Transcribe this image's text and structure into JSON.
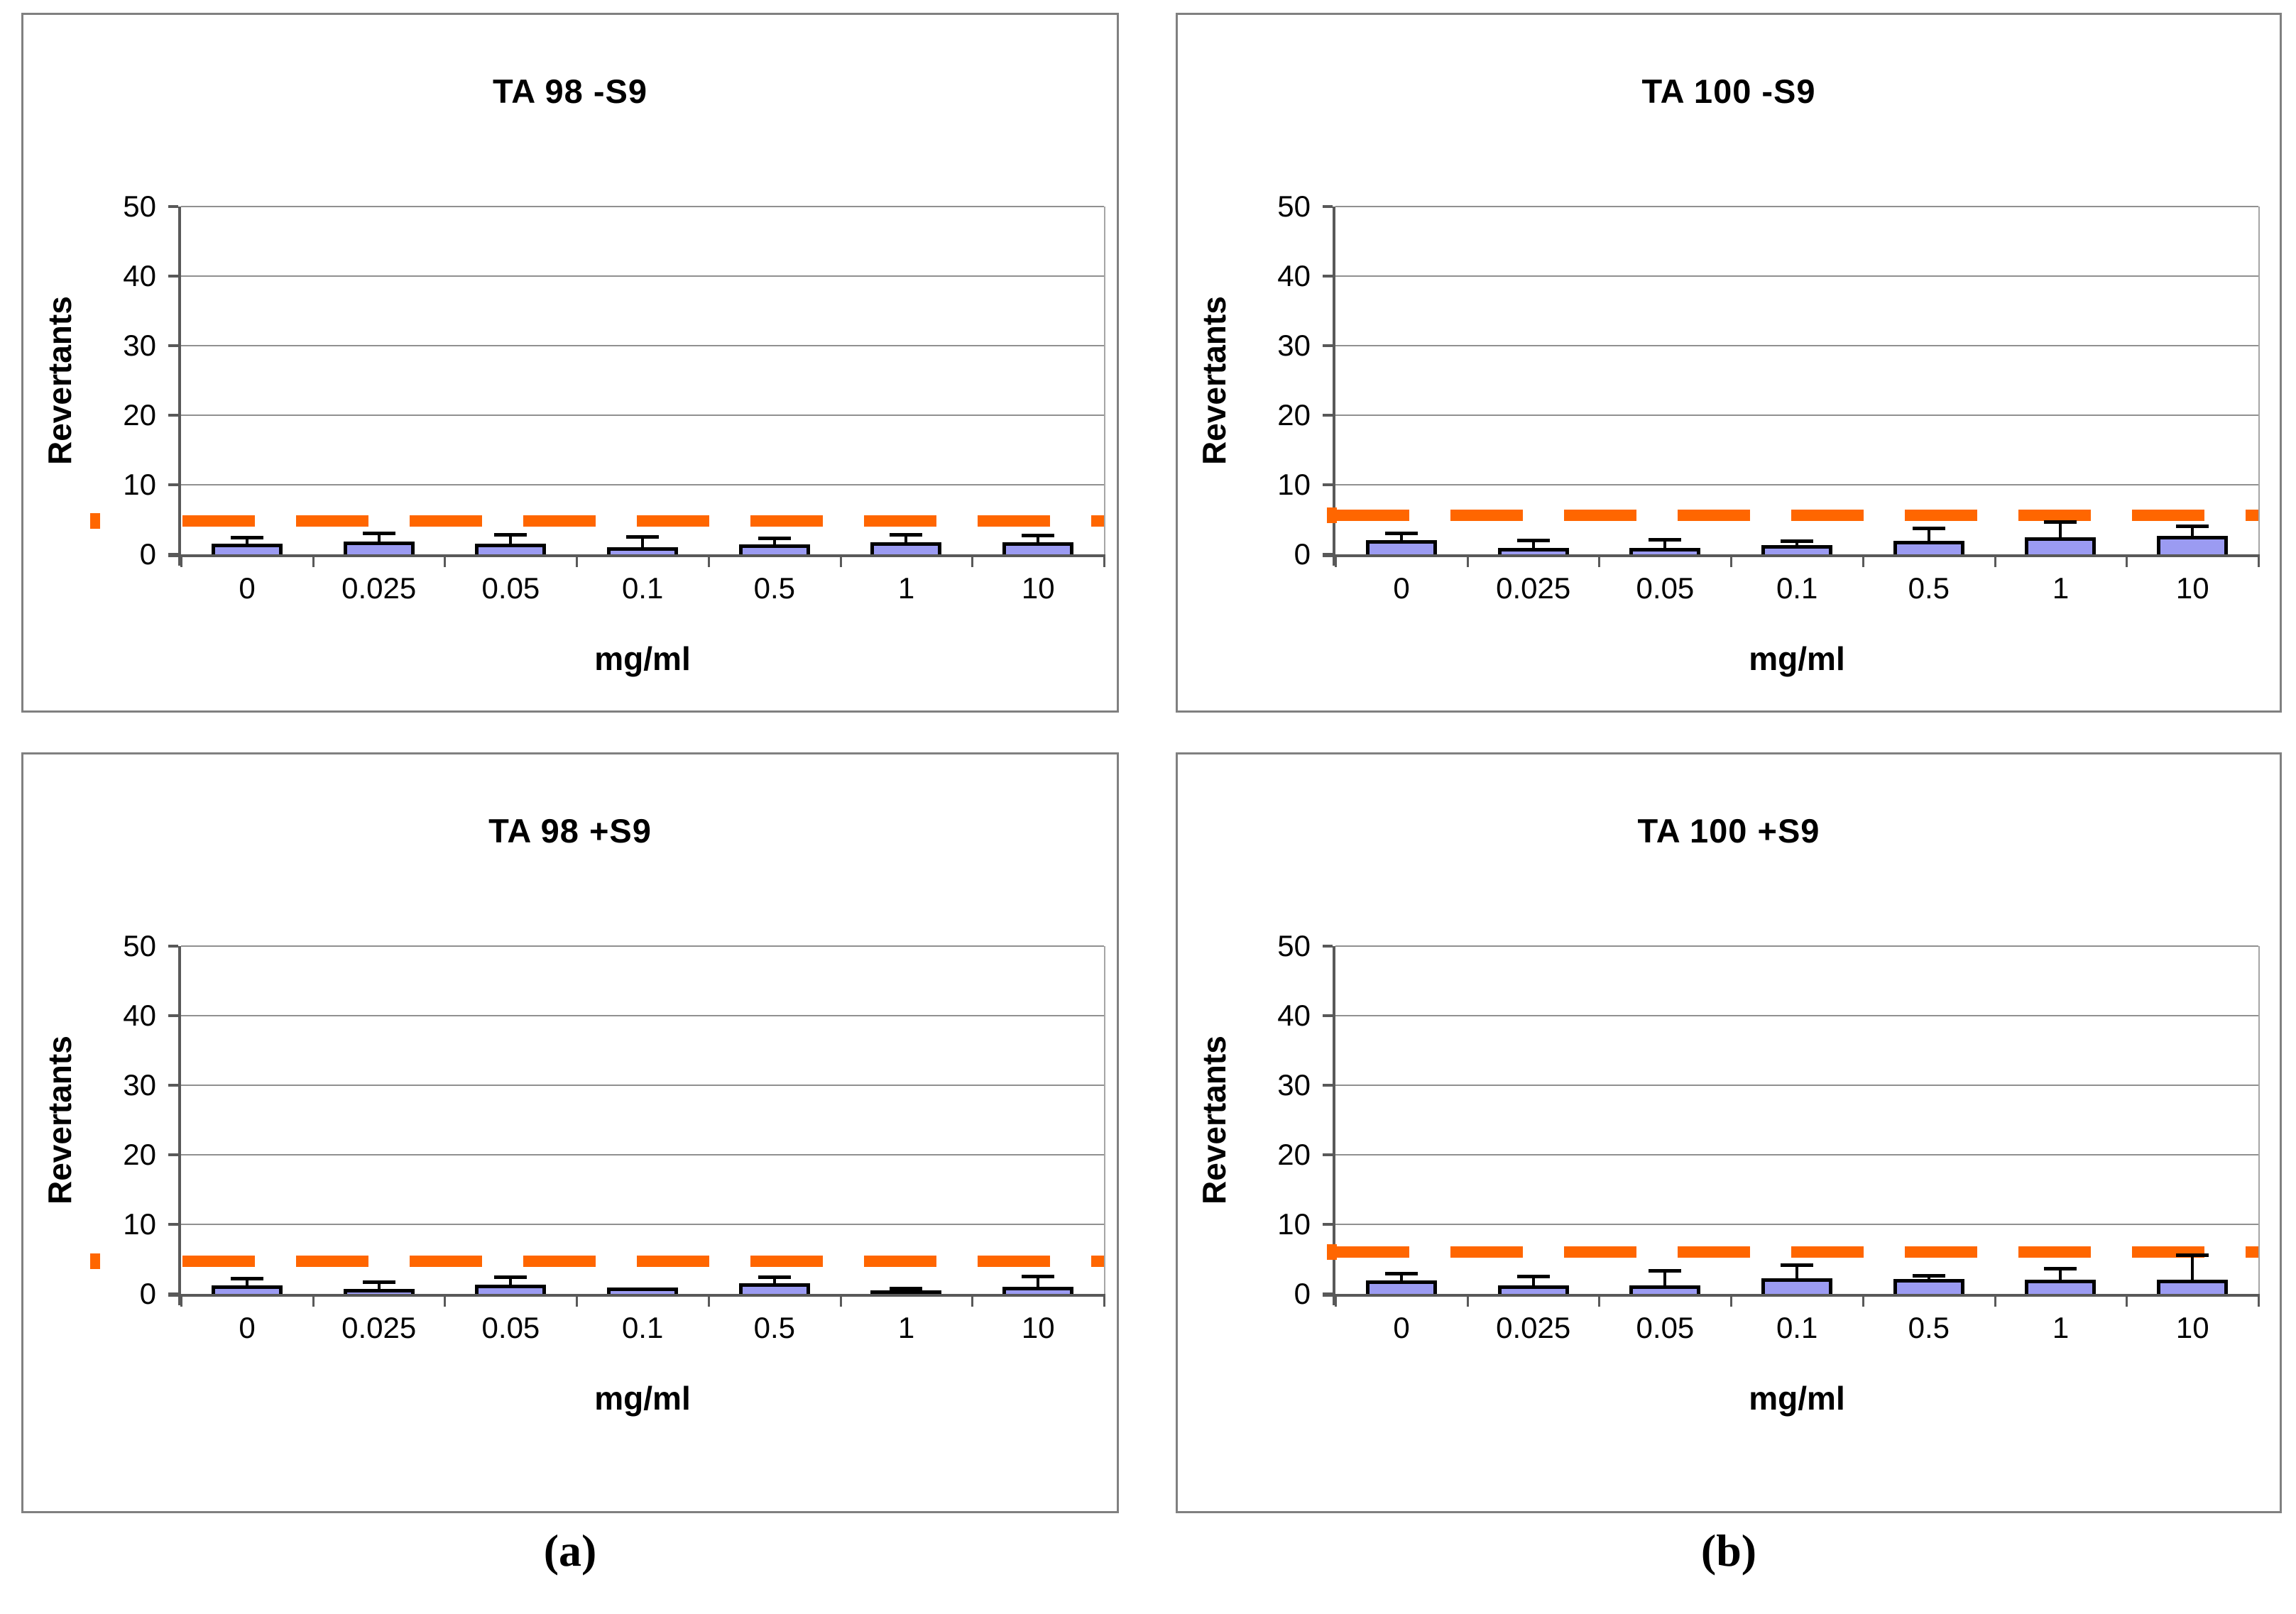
{
  "figure": {
    "sublabels": {
      "a": "(a)",
      "b": "(b)"
    },
    "y_ticks": [
      0,
      10,
      20,
      30,
      40,
      50
    ],
    "colors": {
      "bar_fill": "#9b9bf2",
      "bar_border": "#000000",
      "threshold_dash": "#ff6600",
      "gridline": "#909090",
      "axis": "#595959",
      "panel_border": "#808080"
    }
  },
  "chart_data": [
    {
      "type": "bar",
      "title": "TA 98 -S9",
      "xlabel": "mg/ml",
      "ylabel": "Revertants",
      "ylim": [
        0,
        50
      ],
      "grid": true,
      "legend": "none",
      "categories": [
        "0",
        "0.025",
        "0.05",
        "0.1",
        "0.5",
        "1",
        "10"
      ],
      "values": [
        1.5,
        1.8,
        1.5,
        1.0,
        1.4,
        1.7,
        1.7
      ],
      "error_upper": [
        2.4,
        3.1,
        2.9,
        2.6,
        2.3,
        2.9,
        2.8
      ],
      "threshold_line": 4.8
    },
    {
      "type": "bar",
      "title": "TA 100 -S9",
      "xlabel": "mg/ml",
      "ylabel": "Revertants",
      "ylim": [
        0,
        50
      ],
      "grid": true,
      "legend": "none",
      "categories": [
        "0",
        "0.025",
        "0.05",
        "0.1",
        "0.5",
        "1",
        "10"
      ],
      "values": [
        2.0,
        0.9,
        0.9,
        1.3,
        1.9,
        2.4,
        2.7
      ],
      "error_upper": [
        3.1,
        2.0,
        2.1,
        1.9,
        3.8,
        4.7,
        4.1
      ],
      "threshold_line": 5.6
    },
    {
      "type": "bar",
      "title": "TA 98 +S9",
      "xlabel": "mg/ml",
      "ylabel": "Revertants",
      "ylim": [
        0,
        50
      ],
      "grid": true,
      "legend": "none",
      "categories": [
        "0",
        "0.025",
        "0.05",
        "0.1",
        "0.5",
        "1",
        "10"
      ],
      "values": [
        1.2,
        0.7,
        1.3,
        0.9,
        1.5,
        0.3,
        1.0
      ],
      "error_upper": [
        2.2,
        1.7,
        2.5,
        0.9,
        2.4,
        0.8,
        2.6
      ],
      "threshold_line": 4.7
    },
    {
      "type": "bar",
      "title": "TA 100 +S9",
      "xlabel": "mg/ml",
      "ylabel": "Revertants",
      "ylim": [
        0,
        50
      ],
      "grid": true,
      "legend": "none",
      "categories": [
        "0",
        "0.025",
        "0.05",
        "0.1",
        "0.5",
        "1",
        "10"
      ],
      "values": [
        1.9,
        1.2,
        1.2,
        2.2,
        2.1,
        2.0,
        2.0
      ],
      "error_upper": [
        3.0,
        2.6,
        3.4,
        4.2,
        2.7,
        3.7,
        5.6
      ],
      "threshold_line": 6.0
    }
  ]
}
